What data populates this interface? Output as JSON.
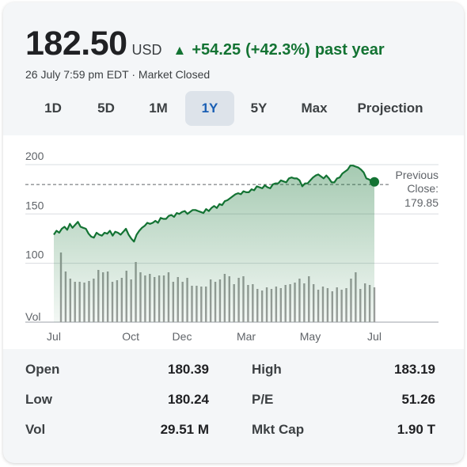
{
  "header": {
    "price": "182.50",
    "currency": "USD",
    "change_arrow": "▲",
    "change_value": "+54.25",
    "change_percent": "(+42.3%)",
    "change_period": "past year",
    "change_color": "#137333",
    "timestamp": "26 July 7:59 pm EDT · Market Closed"
  },
  "tabs": [
    {
      "label": "1D",
      "active": false
    },
    {
      "label": "5D",
      "active": false
    },
    {
      "label": "1M",
      "active": false
    },
    {
      "label": "1Y",
      "active": true
    },
    {
      "label": "5Y",
      "active": false
    },
    {
      "label": "Max",
      "active": false
    },
    {
      "label": "Projection",
      "active": false
    }
  ],
  "chart_data": {
    "type": "area",
    "y_ticks": [
      "200",
      "150",
      "100"
    ],
    "y_tick_values": [
      200,
      150,
      100
    ],
    "ylim": [
      50,
      212
    ],
    "x_labels": [
      "Jul",
      "Oct",
      "Dec",
      "Mar",
      "May",
      "Jul"
    ],
    "x_label_positions": [
      0,
      3,
      5,
      7.5,
      10,
      12.5
    ],
    "volume_label": "Vol",
    "previous_close_label": "Previous Close:",
    "previous_close_value": "179.85",
    "previous_close": 179.85,
    "line_color": "#137333",
    "fill_color": "#137333",
    "volume_color": "#9e9e9e",
    "series": [
      {
        "values": [
          129,
          133,
          131,
          135,
          137,
          134,
          140,
          136,
          139,
          142,
          137,
          136,
          135,
          130,
          127,
          126,
          131,
          129,
          128,
          131,
          130,
          133,
          128,
          132,
          131,
          129,
          132,
          135,
          129,
          125,
          122,
          129,
          133,
          136,
          138,
          141,
          140,
          141,
          143,
          141,
          146,
          145,
          145,
          148,
          149,
          147,
          151,
          150,
          152,
          153,
          150,
          152,
          154,
          154,
          153,
          152,
          151,
          155,
          153,
          156,
          158,
          156,
          160,
          159,
          163,
          164,
          166,
          168,
          170,
          171,
          170,
          173,
          172,
          172,
          175,
          174,
          178,
          177,
          176,
          179,
          177,
          176,
          180,
          181,
          181,
          184,
          183,
          182,
          186,
          187,
          186,
          186,
          184,
          178,
          181,
          181,
          184,
          187,
          189,
          190,
          188,
          186,
          189,
          186,
          182,
          182,
          186,
          187,
          191,
          193,
          195,
          199,
          199,
          198,
          197,
          195,
          192,
          186,
          185,
          183,
          182.5
        ]
      }
    ],
    "volume": [
      88,
      64,
      55,
      51,
      51,
      50,
      52,
      55,
      66,
      63,
      64,
      51,
      53,
      56,
      65,
      54,
      76,
      63,
      59,
      61,
      57,
      59,
      59,
      63,
      51,
      57,
      51,
      56,
      46,
      46,
      45,
      45,
      54,
      51,
      54,
      61,
      58,
      48,
      56,
      58,
      47,
      48,
      42,
      40,
      44,
      42,
      45,
      43,
      47,
      48,
      50,
      55,
      49,
      58,
      48,
      41,
      45,
      43,
      39,
      44,
      41,
      43,
      55,
      63,
      42,
      49,
      47,
      44
    ]
  },
  "stats": {
    "open_label": "Open",
    "open_value": "180.39",
    "low_label": "Low",
    "low_value": "180.24",
    "vol_label": "Vol",
    "vol_value": "29.51 M",
    "high_label": "High",
    "high_value": "183.19",
    "pe_label": "P/E",
    "pe_value": "51.26",
    "mktcap_label": "Mkt Cap",
    "mktcap_value": "1.90 T"
  }
}
